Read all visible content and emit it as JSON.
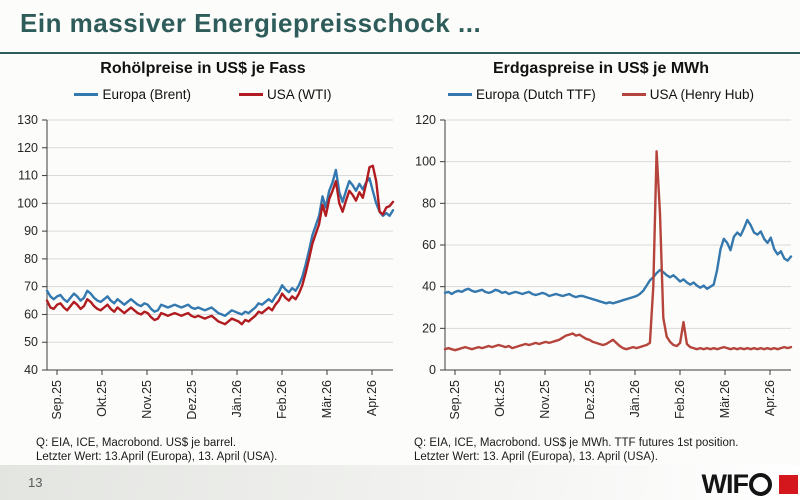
{
  "slide": {
    "title": "Ein massiver Energiepreisschock ...",
    "page_number": "13",
    "accent_color": "#2e5c5a"
  },
  "logo": {
    "text": "WIF",
    "square_color": "#d3171d"
  },
  "chart_data": [
    {
      "type": "line",
      "title": "Rohölpreise in US$ je Fass",
      "x_labels": [
        "Sep.25",
        "Okt.25",
        "Nov.25",
        "Dez.25",
        "Jän.26",
        "Feb.26",
        "Mär.26",
        "Apr.26"
      ],
      "ylim": [
        40,
        130
      ],
      "ytick_step": 10,
      "grid": "horizontal",
      "legend_position": "top",
      "source": [
        "Q: EIA, ICE, Macrobond. US$ je barrel.",
        "Letzter Wert: 13.April (Europa), 13. April (USA)."
      ],
      "series": [
        {
          "name": "Europa (Brent)",
          "color": "#3478b0",
          "values": [
            68.5,
            66.5,
            65.5,
            66.5,
            67,
            65.5,
            64.5,
            66,
            67.5,
            66.5,
            65,
            66,
            68.5,
            67.5,
            66,
            65,
            64.5,
            65.5,
            66.5,
            65,
            64,
            65.5,
            64.5,
            63.5,
            64.5,
            65.5,
            64.5,
            63.5,
            63,
            64,
            63.5,
            62,
            61,
            61.5,
            63.5,
            63,
            62.5,
            63,
            63.5,
            63,
            62.5,
            63,
            63.5,
            62.5,
            62,
            62.5,
            62,
            61.5,
            62,
            62.5,
            61.5,
            60.5,
            60,
            59.5,
            60.5,
            61.5,
            61,
            60.5,
            60,
            61,
            60.5,
            61.5,
            62.5,
            64,
            63.5,
            64.5,
            65.5,
            64.5,
            66.5,
            68,
            70.5,
            69,
            68,
            69.5,
            68.5,
            70.5,
            73.5,
            78,
            83,
            88.5,
            92,
            95.5,
            102.5,
            98.5,
            104.5,
            107.5,
            112,
            104,
            100.5,
            104.5,
            108,
            106.5,
            104.5,
            107,
            105,
            107.5,
            109,
            104.5,
            100,
            97,
            95.5,
            96.5,
            95.5,
            97.5
          ]
        },
        {
          "name": "USA (WTI)",
          "color": "#b01c20",
          "values": [
            65,
            62.5,
            62,
            63.5,
            64,
            62.5,
            61.5,
            63,
            64.5,
            63.5,
            62,
            63,
            65.5,
            64.5,
            63,
            62,
            61.5,
            62.5,
            63.5,
            62,
            61,
            62.5,
            61.5,
            60.5,
            61.5,
            62.5,
            61.5,
            60.5,
            60,
            61,
            60.5,
            59,
            58,
            58.5,
            60.5,
            60,
            59.5,
            60,
            60.5,
            60,
            59.5,
            60,
            60.5,
            59.5,
            59,
            59.5,
            59,
            58.5,
            59,
            59.5,
            58.5,
            57.5,
            57,
            56.5,
            57.5,
            58.5,
            58,
            57.5,
            56.5,
            58,
            57.5,
            58.5,
            59.5,
            61,
            60.5,
            61.5,
            62.5,
            61.5,
            63.5,
            65,
            67.5,
            66,
            65,
            66.5,
            65.5,
            67.5,
            70.5,
            75,
            80,
            85.5,
            89,
            92.5,
            99.5,
            95.5,
            101.5,
            104.5,
            108,
            100,
            97,
            101,
            104.5,
            103,
            101,
            104,
            102,
            107,
            113,
            113.5,
            108,
            97,
            96,
            98.5,
            99,
            100.5
          ]
        }
      ]
    },
    {
      "type": "line",
      "title": "Erdgaspreise in US$ je MWh",
      "x_labels": [
        "Sep.25",
        "Okt.25",
        "Nov.25",
        "Dez.25",
        "Jän.26",
        "Feb.26",
        "Mär.26",
        "Apr.26"
      ],
      "ylim": [
        0,
        120
      ],
      "ytick_step": 20,
      "grid": "horizontal",
      "legend_position": "top",
      "source": [
        "Q: EIA, ICE, Macrobond. US$ je MWh. TTF futures 1st position.",
        "Letzter Wert: 13. April (Europa), 13. April (USA)."
      ],
      "series": [
        {
          "name": "Europa (Dutch TTF)",
          "color": "#3578ad",
          "values": [
            37,
            37.5,
            36.5,
            37.5,
            38,
            37.5,
            38.5,
            39,
            38,
            37.5,
            38,
            38.5,
            37.5,
            37,
            37.5,
            38.5,
            38,
            37,
            37.5,
            36.5,
            37,
            37.5,
            37,
            36.5,
            37,
            37.5,
            36.5,
            36,
            36.5,
            37,
            36.5,
            35.5,
            36,
            36.5,
            36,
            35.5,
            36,
            36.5,
            35.5,
            35,
            35.5,
            35.5,
            35,
            34.5,
            34,
            33.5,
            33,
            32.5,
            32,
            32.5,
            32,
            32.5,
            33,
            33.5,
            34,
            34.5,
            35,
            35.5,
            36.5,
            38,
            40.5,
            43,
            44.5,
            46.5,
            48,
            47,
            45.5,
            44.5,
            45.5,
            44,
            42.5,
            43.5,
            42,
            41,
            42,
            40.5,
            39.5,
            40.5,
            39,
            40,
            41,
            48,
            58,
            63,
            61,
            57.5,
            64,
            66,
            64.5,
            68,
            72,
            69.5,
            66,
            65,
            66.5,
            63,
            61,
            63.5,
            58,
            55.5,
            57,
            53.5,
            52.5,
            54.5
          ]
        },
        {
          "name": "USA (Henry Hub)",
          "color": "#b5443c",
          "values": [
            10,
            10.5,
            10,
            9.5,
            10,
            10.5,
            11,
            10.5,
            10,
            10.5,
            11,
            10.5,
            11,
            11.5,
            11,
            11.5,
            12,
            11.5,
            11,
            11.5,
            10.5,
            11,
            11.5,
            12,
            12.5,
            12,
            12.5,
            13,
            12.5,
            13,
            13.5,
            13,
            13.5,
            14,
            14.5,
            15.5,
            16.5,
            17,
            17.5,
            16.5,
            17,
            16,
            15,
            14.5,
            13.5,
            13,
            12.5,
            12,
            12.5,
            13.5,
            14.5,
            13,
            11.5,
            10.5,
            10,
            10.5,
            11,
            10.5,
            11,
            11.5,
            12,
            13,
            40,
            105,
            75,
            25,
            16,
            13.5,
            12,
            11.5,
            13,
            23,
            12.5,
            11,
            10.5,
            10,
            10.5,
            10,
            10.5,
            10,
            10.5,
            10,
            10.5,
            11,
            10.5,
            10,
            10.5,
            10,
            10.5,
            10,
            10.5,
            10,
            10.5,
            10,
            10.5,
            10,
            10.5,
            10,
            10.5,
            10,
            10.5,
            11,
            10.5,
            11
          ]
        }
      ]
    }
  ]
}
